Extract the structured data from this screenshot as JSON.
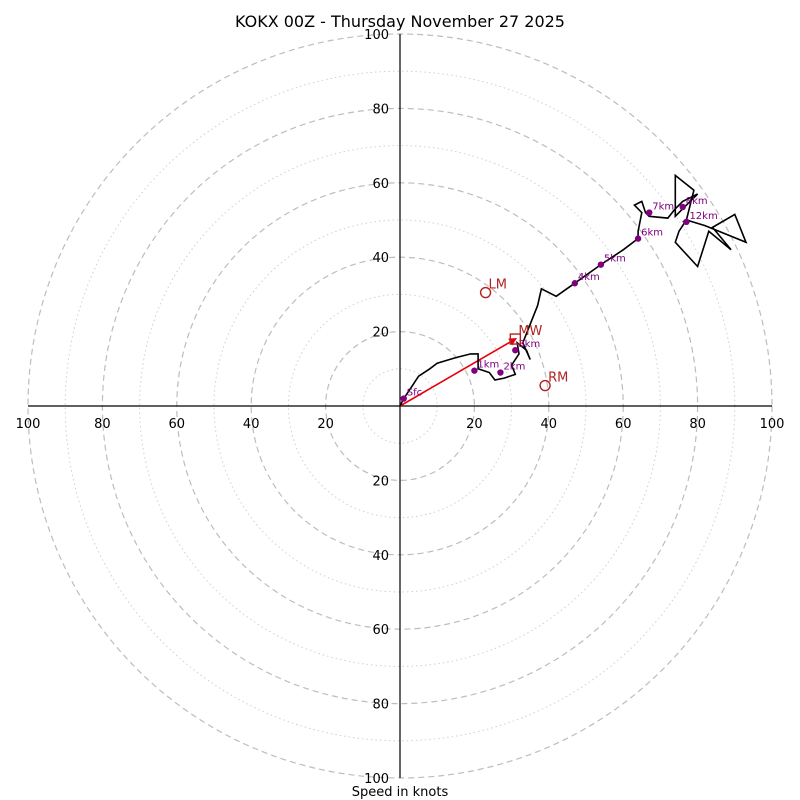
{
  "chart_data": {
    "type": "scatter",
    "subtype": "hodograph",
    "title": "KOKX 00Z - Thursday November 27 2025",
    "xlabel": "Speed in knots",
    "ylabel": "",
    "xlim": [
      -100,
      100
    ],
    "ylim": [
      -100,
      100
    ],
    "units": "knots",
    "rings_major": [
      20,
      40,
      60,
      80,
      100
    ],
    "rings_minor": [
      10,
      30,
      50,
      70,
      90
    ],
    "x_ticks": [
      {
        "value": -100,
        "label": "100"
      },
      {
        "value": -80,
        "label": "80"
      },
      {
        "value": -60,
        "label": "60"
      },
      {
        "value": -40,
        "label": "40"
      },
      {
        "value": -20,
        "label": "20"
      },
      {
        "value": 20,
        "label": "20"
      },
      {
        "value": 40,
        "label": "40"
      },
      {
        "value": 60,
        "label": "60"
      },
      {
        "value": 80,
        "label": "80"
      },
      {
        "value": 100,
        "label": "100"
      }
    ],
    "y_ticks": [
      {
        "value": 100,
        "label": "100"
      },
      {
        "value": 80,
        "label": "80"
      },
      {
        "value": 60,
        "label": "60"
      },
      {
        "value": 40,
        "label": "40"
      },
      {
        "value": 20,
        "label": "20"
      },
      {
        "value": -20,
        "label": "20"
      },
      {
        "value": -40,
        "label": "40"
      },
      {
        "value": -60,
        "label": "60"
      },
      {
        "value": -80,
        "label": "80"
      },
      {
        "value": -100,
        "label": "100"
      }
    ],
    "trace": {
      "color": "#000000",
      "points": [
        [
          0,
          0
        ],
        [
          1,
          2
        ],
        [
          3,
          5
        ],
        [
          5,
          8
        ],
        [
          8,
          10
        ],
        [
          10,
          11.5
        ],
        [
          15,
          13
        ],
        [
          19,
          14
        ],
        [
          21,
          14
        ],
        [
          21,
          10
        ],
        [
          24,
          9
        ],
        [
          25.5,
          7
        ],
        [
          28,
          7.5
        ],
        [
          31,
          8.5
        ],
        [
          30,
          11
        ],
        [
          32,
          14
        ],
        [
          31.5,
          17
        ],
        [
          34,
          15
        ],
        [
          35,
          12.5
        ],
        [
          33,
          17
        ],
        [
          35,
          22
        ],
        [
          37,
          27
        ],
        [
          38,
          31.5
        ],
        [
          42,
          29.5
        ],
        [
          47,
          33
        ],
        [
          54,
          38
        ],
        [
          60,
          42
        ],
        [
          64,
          45
        ],
        [
          64,
          47
        ],
        [
          65,
          52
        ],
        [
          63,
          54
        ],
        [
          65,
          55
        ],
        [
          66,
          52
        ],
        [
          67,
          51
        ],
        [
          72,
          50.5
        ],
        [
          74,
          53
        ],
        [
          76,
          55
        ],
        [
          80,
          57
        ],
        [
          76,
          53
        ],
        [
          74,
          51
        ],
        [
          74,
          62
        ],
        [
          79,
          58
        ],
        [
          77,
          50
        ],
        [
          75,
          47
        ],
        [
          74,
          44
        ],
        [
          80,
          37.5
        ],
        [
          83,
          47
        ],
        [
          89,
          42
        ],
        [
          84,
          48
        ],
        [
          90,
          51.5
        ],
        [
          93,
          44
        ],
        [
          82,
          48.5
        ],
        [
          77,
          50
        ],
        [
          76,
          49.5
        ]
      ]
    },
    "height_labels": [
      {
        "label": "Sfc",
        "u": 1,
        "v": 2
      },
      {
        "label": "1km",
        "u": 20,
        "v": 9.5
      },
      {
        "label": "2km",
        "u": 27,
        "v": 9
      },
      {
        "label": "3km",
        "u": 31,
        "v": 15
      },
      {
        "label": "4km",
        "u": 47,
        "v": 33
      },
      {
        "label": "5km",
        "u": 54,
        "v": 38
      },
      {
        "label": "6km",
        "u": 64,
        "v": 45
      },
      {
        "label": "7km",
        "u": 67,
        "v": 52
      },
      {
        "label": "8km",
        "u": 76,
        "v": 53.5
      },
      {
        "label": "12km",
        "u": 77,
        "v": 49.5
      }
    ],
    "height_color": "#800080",
    "storm_motion": [
      {
        "label": "LM",
        "u": 23,
        "v": 30.5,
        "marker": "circle"
      },
      {
        "label": "RM",
        "u": 39,
        "v": 5.5,
        "marker": "circle"
      },
      {
        "label": "MW",
        "u": 31,
        "v": 18,
        "marker": "square"
      }
    ],
    "motion_color": "#b22222",
    "mean_wind_vector": {
      "from": [
        0,
        0
      ],
      "to": [
        31,
        18
      ],
      "color": "#e8000b"
    }
  }
}
